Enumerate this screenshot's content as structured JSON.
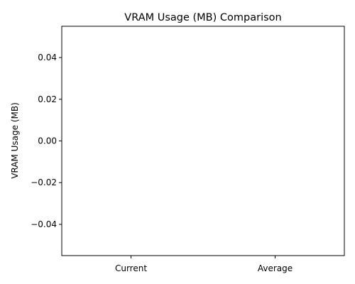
{
  "chart_data": {
    "type": "bar",
    "title": "VRAM Usage (MB) Comparison",
    "xlabel": "",
    "ylabel": "VRAM Usage (MB)",
    "categories": [
      "Current",
      "Average"
    ],
    "values": [
      0,
      0
    ],
    "ylim": [
      -0.055,
      0.055
    ],
    "yticks": [
      0.04,
      0.02,
      0.0,
      -0.02,
      -0.04
    ],
    "ytick_labels": [
      "0.04",
      "0.02",
      "0.00",
      "−0.02",
      "−0.04"
    ],
    "grid": false,
    "legend": "none",
    "colors": {
      "bar": "#1f77b4",
      "axis": "#000000",
      "background": "#ffffff"
    }
  }
}
